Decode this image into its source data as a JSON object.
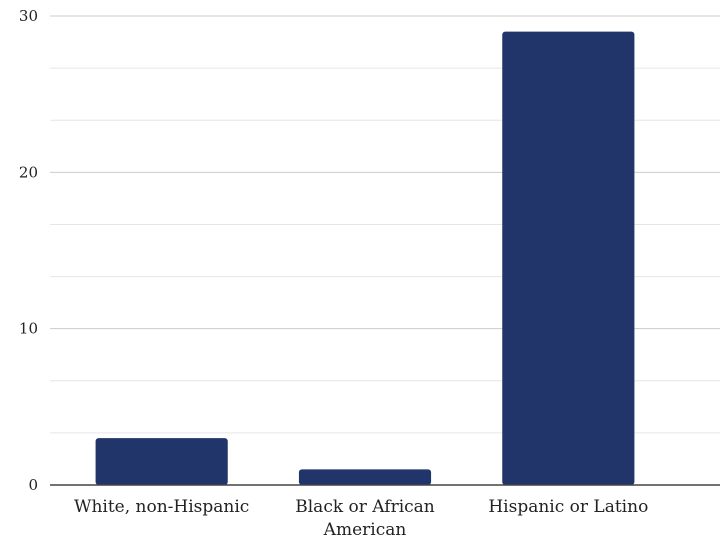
{
  "chart_data": {
    "type": "bar",
    "categories": [
      [
        "White, non-Hispanic"
      ],
      [
        "Black or African",
        "American"
      ],
      [
        "Hispanic or Latino"
      ]
    ],
    "values": [
      3,
      1,
      29
    ],
    "ylim": [
      0,
      30
    ],
    "yticks": [
      "0",
      "10",
      "20",
      "30"
    ],
    "minor_grid_step": 3.333,
    "grid": true,
    "legend": "none",
    "bar_color": "#22356a",
    "grid_color": "#cccccc",
    "axis_color": "#444444"
  }
}
